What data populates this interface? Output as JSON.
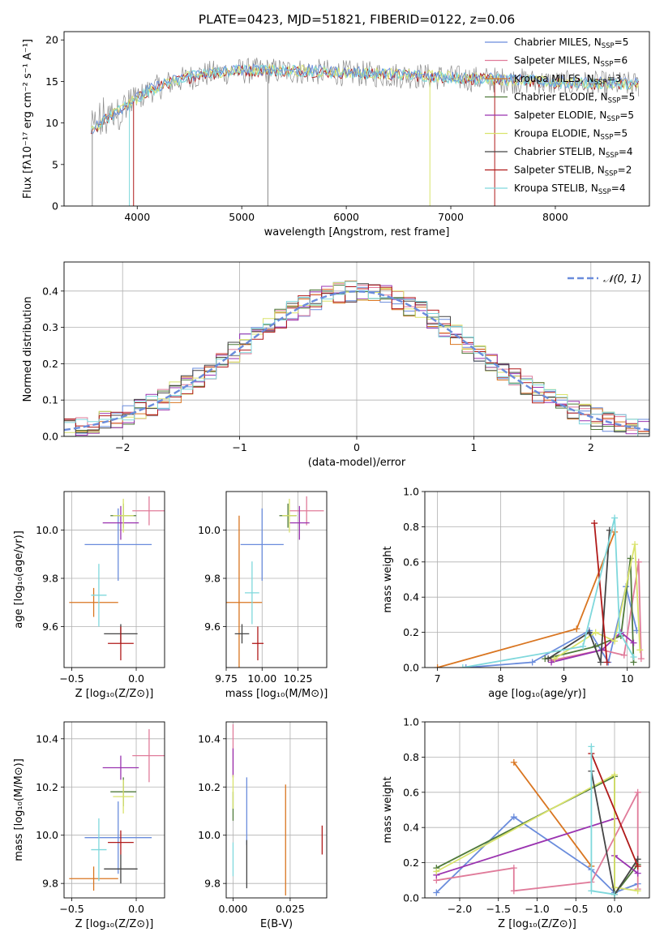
{
  "figure_title": "PLATE=0423, MJD=51821, FIBERID=0122, z=0.06",
  "colors": [
    "#6a8cdc",
    "#e07b9a",
    "#d97520",
    "#4f7a3a",
    "#9a33b0",
    "#d9e36c",
    "#444444",
    "#b01a1a",
    "#7fd8dc",
    "#8a8a8a"
  ],
  "chart_data": [
    {
      "id": "spectrum",
      "type": "line",
      "xlabel": "wavelength [Angstrom, rest frame]",
      "ylabel": "Flux [fλ10⁻¹⁷ erg cm⁻² s⁻¹ A⁻¹]",
      "xlim": [
        3300,
        8900
      ],
      "ylim": [
        0,
        21
      ],
      "xticks": [
        4000,
        5000,
        6000,
        7000,
        8000
      ],
      "yticks": [
        0,
        5,
        10,
        15,
        20
      ],
      "continuum_x": [
        3560,
        3700,
        3900,
        4100,
        4300,
        4600,
        4900,
        5200,
        5600,
        6000,
        6400,
        6800,
        7200,
        7600,
        8000,
        8400,
        8800
      ],
      "continuum_y": [
        9,
        10.5,
        12,
        13.8,
        14.8,
        15.8,
        16.2,
        16.3,
        16.2,
        16.0,
        15.8,
        15.6,
        15.3,
        15.1,
        14.8,
        14.7,
        14.6
      ],
      "legend": [
        {
          "label": "Chabrier MILES, N",
          "sub": "SSP",
          "tail": "=5"
        },
        {
          "label": "Salpeter MILES, N",
          "sub": "SSP",
          "tail": "=6"
        },
        {
          "label": "Kroupa MILES, N",
          "sub": "SSP",
          "tail": "=3"
        },
        {
          "label": "Chabrier ELODIE, N",
          "sub": "SSP",
          "tail": "=5"
        },
        {
          "label": "Salpeter ELODIE, N",
          "sub": "SSP",
          "tail": "=5"
        },
        {
          "label": "Kroupa ELODIE, N",
          "sub": "SSP",
          "tail": "=5"
        },
        {
          "label": "Chabrier STELIB, N",
          "sub": "SSP",
          "tail": "=4"
        },
        {
          "label": "Salpeter STELIB, N",
          "sub": "SSP",
          "tail": "=2"
        },
        {
          "label": "Kroupa STELIB, N",
          "sub": "SSP",
          "tail": "=4"
        }
      ]
    },
    {
      "id": "residuals",
      "type": "step",
      "xlabel": "(data-model)/error",
      "ylabel": "Normed distribution",
      "xlim": [
        -2.5,
        2.5
      ],
      "ylim": [
        0,
        0.48
      ],
      "xticks": [
        -2,
        -1,
        0,
        1,
        2
      ],
      "xticklabels": [
        "−2",
        "−1",
        "0",
        "1",
        "2"
      ],
      "yticks": [
        0.0,
        0.1,
        0.2,
        0.3,
        0.4
      ],
      "yticklabels": [
        "0.0",
        "0.1",
        "0.2",
        "0.3",
        "0.4"
      ],
      "grid": true,
      "bin_width": 0.1,
      "legend_label": "𝒩(0, 1)",
      "gaussian": {
        "mean": 0,
        "sigma": 1
      }
    },
    {
      "id": "z-age",
      "type": "errorbar",
      "xlabel": "Z [log₁₀(Z/Z⊙)]",
      "ylabel": "age  [log₁₀(age/yr)]",
      "xlim": [
        -0.56,
        0.22
      ],
      "ylim": [
        9.43,
        10.16
      ],
      "xticks": [
        -0.5,
        0.0
      ],
      "xticklabels": [
        "−0.5",
        "0.0"
      ],
      "yticks": [
        9.6,
        9.8,
        10.0
      ],
      "yticklabels": [
        "9.6",
        "9.8",
        "10.0"
      ],
      "points": [
        {
          "x": -0.14,
          "xerr": 0.26,
          "y": 9.94,
          "yerr": 0.15,
          "c": 0
        },
        {
          "x": 0.1,
          "xerr": 0.13,
          "y": 10.08,
          "yerr": 0.06,
          "c": 1
        },
        {
          "x": -0.33,
          "xerr": 0.19,
          "y": 9.7,
          "yerr": 0.06,
          "c": 2
        },
        {
          "x": -0.1,
          "xerr": 0.1,
          "y": 10.06,
          "yerr": 0.05,
          "c": 3
        },
        {
          "x": -0.12,
          "xerr": 0.14,
          "y": 10.03,
          "yerr": 0.07,
          "c": 4
        },
        {
          "x": -0.1,
          "xerr": 0.08,
          "y": 10.06,
          "yerr": 0.07,
          "c": 5
        },
        {
          "x": -0.12,
          "xerr": 0.13,
          "y": 9.57,
          "yerr": 0.04,
          "c": 6
        },
        {
          "x": -0.12,
          "xerr": 0.1,
          "y": 9.53,
          "yerr": 0.07,
          "c": 7
        },
        {
          "x": -0.29,
          "xerr": 0.06,
          "y": 9.73,
          "yerr": 0.13,
          "c": 8
        }
      ]
    },
    {
      "id": "mass-age",
      "type": "errorbar",
      "xlabel": "mass [log₁₀(M/M⊙)]",
      "ylabel": "",
      "xlim": [
        9.75,
        10.45
      ],
      "ylim": [
        9.43,
        10.16
      ],
      "xticks": [
        9.75,
        10.0,
        10.25
      ],
      "xticklabels": [
        "9.75",
        "10.00",
        "10.25"
      ],
      "yticks": [
        9.6,
        9.8,
        10.0
      ],
      "yticklabels": [
        "9.6",
        "9.8",
        "10.0"
      ],
      "points": [
        {
          "x": 10.0,
          "xerr": 0.15,
          "y": 9.94,
          "yerr": 0.15,
          "c": 0
        },
        {
          "x": 10.31,
          "xerr": 0.12,
          "y": 10.08,
          "yerr": 0.06,
          "c": 1
        },
        {
          "x": 9.84,
          "xerr": 0.16,
          "y": 9.7,
          "yerr": 0.36,
          "c": 2
        },
        {
          "x": 10.18,
          "xerr": 0.06,
          "y": 10.06,
          "yerr": 0.05,
          "c": 3
        },
        {
          "x": 10.26,
          "xerr": 0.07,
          "y": 10.03,
          "yerr": 0.07,
          "c": 4
        },
        {
          "x": 10.19,
          "xerr": 0.05,
          "y": 10.06,
          "yerr": 0.07,
          "c": 5
        },
        {
          "x": 9.86,
          "xerr": 0.05,
          "y": 9.57,
          "yerr": 0.04,
          "c": 6
        },
        {
          "x": 9.97,
          "xerr": 0.04,
          "y": 9.53,
          "yerr": 0.07,
          "c": 7
        },
        {
          "x": 9.93,
          "xerr": 0.05,
          "y": 9.74,
          "yerr": 0.13,
          "c": 8
        }
      ]
    },
    {
      "id": "age-weight",
      "type": "line",
      "xlabel": "age  [log₁₀(age/yr)]",
      "ylabel": "mass weight",
      "xlim": [
        6.8,
        10.35
      ],
      "ylim": [
        0,
        1.0
      ],
      "xticks": [
        7,
        8,
        9,
        10
      ],
      "yticks": [
        0.0,
        0.2,
        0.4,
        0.6,
        0.8,
        1.0
      ],
      "yticklabels": [
        "0.0",
        "0.2",
        "0.4",
        "0.6",
        "0.8",
        "1.0"
      ],
      "series": [
        {
          "c": 0,
          "x": [
            7.45,
            8.5,
            9.4,
            9.7,
            9.98,
            10.15
          ],
          "y": [
            0.0,
            0.03,
            0.21,
            0.03,
            0.46,
            0.21
          ]
        },
        {
          "c": 1,
          "x": [
            8.8,
            9.6,
            9.95,
            10.18,
            10.22
          ],
          "y": [
            0.04,
            0.1,
            0.07,
            0.6,
            0.05
          ]
        },
        {
          "c": 2,
          "x": [
            7.0,
            9.2,
            9.8
          ],
          "y": [
            0.0,
            0.22,
            0.77
          ]
        },
        {
          "c": 3,
          "x": [
            8.7,
            9.5,
            9.9,
            10.05,
            10.1
          ],
          "y": [
            0.05,
            0.12,
            0.18,
            0.62,
            0.03
          ]
        },
        {
          "c": 4,
          "x": [
            8.8,
            9.6,
            9.9,
            10.1
          ],
          "y": [
            0.03,
            0.1,
            0.2,
            0.14
          ]
        },
        {
          "c": 5,
          "x": [
            8.85,
            9.5,
            9.8,
            10.12,
            10.2
          ],
          "y": [
            0.05,
            0.2,
            0.15,
            0.7,
            0.1
          ]
        },
        {
          "c": 6,
          "x": [
            8.75,
            9.4,
            9.58,
            9.72
          ],
          "y": [
            0.05,
            0.2,
            0.03,
            0.78
          ]
        },
        {
          "c": 7,
          "x": [
            9.48,
            9.68
          ],
          "y": [
            0.82,
            0.03
          ]
        },
        {
          "c": 8,
          "x": [
            7.4,
            9.3,
            9.8,
            9.88,
            10.1
          ],
          "y": [
            0.0,
            0.12,
            0.85,
            0.2,
            0.06
          ]
        }
      ]
    },
    {
      "id": "z-mass",
      "type": "errorbar",
      "xlabel": "Z [log₁₀(Z/Z⊙)]",
      "ylabel": "mass [log₁₀(M/M⊙)]",
      "xlim": [
        -0.56,
        0.22
      ],
      "ylim": [
        9.74,
        10.47
      ],
      "xticks": [
        -0.5,
        0.0
      ],
      "xticklabels": [
        "−0.5",
        "0.0"
      ],
      "yticks": [
        9.8,
        10.0,
        10.2,
        10.4
      ],
      "yticklabels": [
        "9.8",
        "10.0",
        "10.2",
        "10.4"
      ],
      "points": [
        {
          "x": -0.14,
          "xerr": 0.26,
          "y": 9.99,
          "yerr": 0.15,
          "c": 0
        },
        {
          "x": 0.1,
          "xerr": 0.13,
          "y": 10.33,
          "yerr": 0.11,
          "c": 1
        },
        {
          "x": -0.33,
          "xerr": 0.19,
          "y": 9.82,
          "yerr": 0.05,
          "c": 2
        },
        {
          "x": -0.1,
          "xerr": 0.1,
          "y": 10.18,
          "yerr": 0.06,
          "c": 3
        },
        {
          "x": -0.12,
          "xerr": 0.14,
          "y": 10.28,
          "yerr": 0.05,
          "c": 4
        },
        {
          "x": -0.1,
          "xerr": 0.08,
          "y": 10.16,
          "yerr": 0.07,
          "c": 5
        },
        {
          "x": -0.12,
          "xerr": 0.13,
          "y": 9.86,
          "yerr": 0.06,
          "c": 6
        },
        {
          "x": -0.12,
          "xerr": 0.1,
          "y": 9.97,
          "yerr": 0.05,
          "c": 7
        },
        {
          "x": -0.29,
          "xerr": 0.06,
          "y": 9.94,
          "yerr": 0.13,
          "c": 8
        }
      ]
    },
    {
      "id": "ebv-mass",
      "type": "errorbar",
      "xlabel": "E(B-V)",
      "ylabel": "",
      "xlim": [
        -0.003,
        0.041
      ],
      "ylim": [
        9.74,
        10.47
      ],
      "xticks": [
        0.0,
        0.025
      ],
      "xticklabels": [
        "0.000",
        "0.025"
      ],
      "yticks": [
        9.8,
        10.0,
        10.2,
        10.4
      ],
      "yticklabels": [
        "9.8",
        "10.0",
        "10.2",
        "10.4"
      ],
      "points": [
        {
          "x": 0.006,
          "xerr": 0,
          "y": 10.1,
          "yerr": 0.14,
          "c": 0
        },
        {
          "x": 0.0,
          "xerr": 0,
          "y": 10.35,
          "yerr": 0.11,
          "c": 1
        },
        {
          "x": 0.023,
          "xerr": 0,
          "y": 9.98,
          "yerr": 0.23,
          "c": 2
        },
        {
          "x": 0.0,
          "xerr": 0,
          "y": 10.12,
          "yerr": 0.06,
          "c": 3
        },
        {
          "x": 0.0,
          "xerr": 0,
          "y": 10.3,
          "yerr": 0.06,
          "c": 4
        },
        {
          "x": 0.0,
          "xerr": 0,
          "y": 10.18,
          "yerr": 0.07,
          "c": 5
        },
        {
          "x": 0.006,
          "xerr": 0,
          "y": 9.88,
          "yerr": 0.1,
          "c": 6
        },
        {
          "x": 0.039,
          "xerr": 0,
          "y": 9.98,
          "yerr": 0.06,
          "c": 7
        },
        {
          "x": 0.0,
          "xerr": 0,
          "y": 9.9,
          "yerr": 0.07,
          "c": 8
        }
      ]
    },
    {
      "id": "z-weight",
      "type": "line",
      "xlabel": "Z [log₁₀(Z/Z⊙)]",
      "ylabel": "mass weight",
      "xlim": [
        -2.45,
        0.45
      ],
      "ylim": [
        0,
        1.0
      ],
      "xticks": [
        -2.0,
        -1.5,
        -1.0,
        -0.5,
        0.0
      ],
      "xticklabels": [
        "−2.0",
        "−1.5",
        "−1.0",
        "−0.5",
        "0.0"
      ],
      "yticks": [
        0.0,
        0.2,
        0.4,
        0.6,
        0.8,
        1.0
      ],
      "yticklabels": [
        "0.0",
        "0.2",
        "0.4",
        "0.6",
        "0.8",
        "1.0"
      ],
      "series": [
        {
          "c": 0,
          "x": [
            -2.3,
            -1.3,
            -0.3,
            0.0,
            0.3
          ],
          "y": [
            0.03,
            0.46,
            0.16,
            0.03,
            0.08
          ]
        },
        {
          "c": 1,
          "x": [
            -2.3,
            -1.3,
            -1.3,
            -0.3,
            0.3,
            0.3
          ],
          "y": [
            0.1,
            0.17,
            0.04,
            0.09,
            0.6,
            0.05
          ]
        },
        {
          "c": 2,
          "x": [
            -1.3,
            -0.3
          ],
          "y": [
            0.77,
            0.18
          ]
        },
        {
          "c": 3,
          "x": [
            -2.3,
            0.0,
            0.0,
            0.3
          ],
          "y": [
            0.17,
            0.69,
            0.02,
            0.19
          ]
        },
        {
          "c": 4,
          "x": [
            -2.3,
            0.0,
            0.0,
            0.3
          ],
          "y": [
            0.13,
            0.45,
            0.24,
            0.14
          ]
        },
        {
          "c": 5,
          "x": [
            -2.3,
            0.0,
            0.0,
            0.3
          ],
          "y": [
            0.15,
            0.7,
            0.06,
            0.04
          ]
        },
        {
          "c": 6,
          "x": [
            -0.3,
            0.0,
            0.3
          ],
          "y": [
            0.72,
            0.02,
            0.22
          ]
        },
        {
          "c": 7,
          "x": [
            -0.3,
            0.3
          ],
          "y": [
            0.82,
            0.18
          ]
        },
        {
          "c": 8,
          "x": [
            -0.3,
            -0.3,
            0.0
          ],
          "y": [
            0.86,
            0.04,
            0.02
          ]
        }
      ]
    }
  ]
}
